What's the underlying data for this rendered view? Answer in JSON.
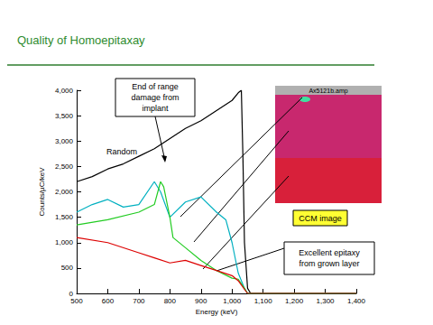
{
  "chart_data": {
    "type": "line",
    "title": "Quality of Homoepitaxay",
    "x_label": "Energy (keV)",
    "y_label": "Counts/µC/keV",
    "xlim": [
      500,
      1400
    ],
    "xticks": [
      500,
      600,
      700,
      800,
      900,
      1000,
      1100,
      1200,
      1300,
      1400
    ],
    "ylim": [
      0,
      4000
    ],
    "yticks": [
      0,
      500,
      1000,
      1500,
      2000,
      2500,
      3000,
      3500,
      4000
    ],
    "grid": false,
    "series": [
      {
        "name": "Random",
        "color": "#000000",
        "x": [
          500,
          550,
          600,
          650,
          700,
          750,
          800,
          850,
          900,
          950,
          1000,
          1020,
          1030,
          1035,
          1040,
          1050,
          1060,
          1400
        ],
        "values": [
          2200,
          2300,
          2450,
          2550,
          2700,
          2850,
          3050,
          3250,
          3400,
          3600,
          3800,
          3950,
          4000,
          2700,
          1000,
          100,
          0,
          0
        ]
      },
      {
        "color": "#00b0c0",
        "x": [
          500,
          550,
          600,
          650,
          700,
          750,
          770,
          800,
          850,
          900,
          950,
          980,
          1000,
          1020,
          1040,
          1050,
          1400
        ],
        "values": [
          1600,
          1750,
          1850,
          1700,
          1750,
          2200,
          2000,
          1500,
          1800,
          1900,
          1600,
          1450,
          1000,
          400,
          100,
          0,
          0
        ]
      },
      {
        "color": "#22cc22",
        "x": [
          500,
          600,
          700,
          750,
          770,
          780,
          800,
          810,
          850,
          900,
          950,
          1000,
          1020,
          1040,
          1050,
          1400
        ],
        "values": [
          1350,
          1450,
          1600,
          1750,
          2200,
          2100,
          1500,
          1100,
          900,
          650,
          450,
          300,
          280,
          100,
          0,
          0
        ]
      },
      {
        "color": "#dd0000",
        "x": [
          500,
          600,
          700,
          750,
          800,
          850,
          900,
          950,
          1000,
          1020,
          1040,
          1050,
          1400
        ],
        "values": [
          1100,
          1000,
          800,
          700,
          600,
          650,
          550,
          450,
          350,
          250,
          80,
          0,
          0
        ]
      }
    ],
    "annotations": [
      "End of range damage from implant",
      "Excellent epitaxy from grown layer"
    ],
    "image_label": "Ax5121b.amp",
    "image_caption": "CCM image"
  }
}
